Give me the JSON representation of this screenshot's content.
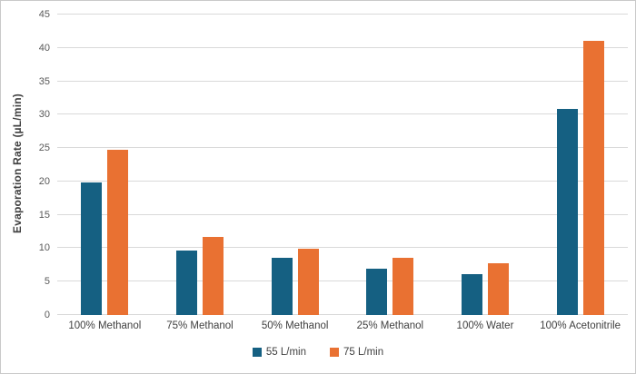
{
  "chart_data": {
    "type": "bar",
    "title": "",
    "ylabel": "Evaporation Rate (µL/min)",
    "xlabel": "",
    "ylim": [
      0,
      45
    ],
    "yticks": [
      0,
      5,
      10,
      15,
      20,
      25,
      30,
      35,
      40,
      45
    ],
    "grid": true,
    "legend_position": "bottom",
    "categories": [
      "100% Methanol",
      "75% Methanol",
      "50% Methanol",
      "25% Methanol",
      "100% Water",
      "100% Acetonitrile"
    ],
    "series": [
      {
        "name": "55 L/min",
        "color": "#156082",
        "values": [
          19.8,
          9.7,
          8.6,
          7.0,
          6.1,
          30.8
        ]
      },
      {
        "name": "75 L/min",
        "color": "#E97132",
        "values": [
          24.8,
          11.7,
          9.9,
          8.6,
          7.8,
          41.1
        ]
      }
    ]
  },
  "colors": {
    "gridline": "#d9d9d9",
    "tick_label": "#595959",
    "category_label": "#3f3f3f",
    "axis_title": "#404040",
    "frame_border": "#c9c9c9",
    "background": "#ffffff"
  }
}
